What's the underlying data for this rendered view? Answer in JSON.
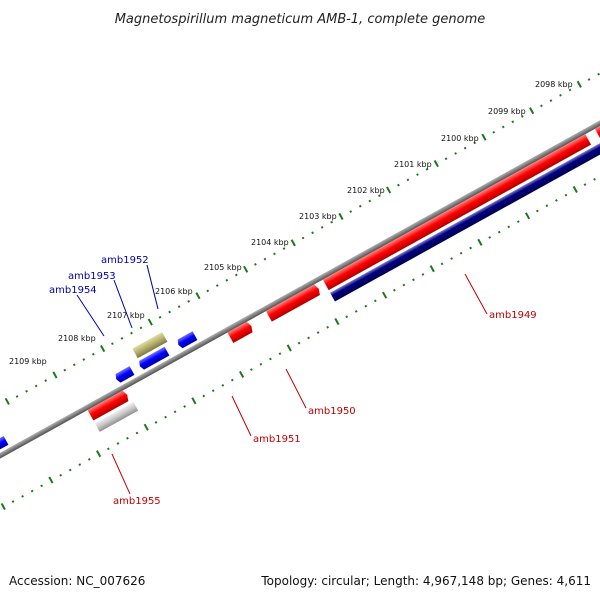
{
  "title": "Magnetospirillum magneticum AMB-1, complete genome",
  "accession_text": "Accession: NC_007626",
  "summary_text": "Topology: circular; Length: 4,967,148 bp; Genes: 4,611",
  "ticks": [
    {
      "label": "2098 kbp"
    },
    {
      "label": "2099 kbp"
    },
    {
      "label": "2100 kbp"
    },
    {
      "label": "2101 kbp"
    },
    {
      "label": "2102 kbp"
    },
    {
      "label": "2103 kbp"
    },
    {
      "label": "2104 kbp"
    },
    {
      "label": "2105 kbp"
    },
    {
      "label": "2106 kbp"
    },
    {
      "label": "2107 kbp"
    },
    {
      "label": "2108 kbp"
    },
    {
      "label": "2109 kbp"
    }
  ],
  "genes": [
    {
      "label": "amb1949",
      "color": "#e00000"
    },
    {
      "label": "amb1950",
      "color": "#e00000"
    },
    {
      "label": "amb1951",
      "color": "#e00000"
    },
    {
      "label": "amb1952",
      "color": "#0000e0"
    },
    {
      "label": "amb1953",
      "color": "#0000e0"
    },
    {
      "label": "amb1954",
      "color": "#0000e0"
    },
    {
      "label": "amb1955",
      "color": "#e00000"
    }
  ],
  "colors": {
    "forward_gene": "#ff0000",
    "reverse_gene": "#0000ff",
    "cds_track": "#000080",
    "pseudo_gene": "#b5b070",
    "gray_gene": "#c0c0c0",
    "backbone": "#808080",
    "tick": "#1a7a1a"
  }
}
